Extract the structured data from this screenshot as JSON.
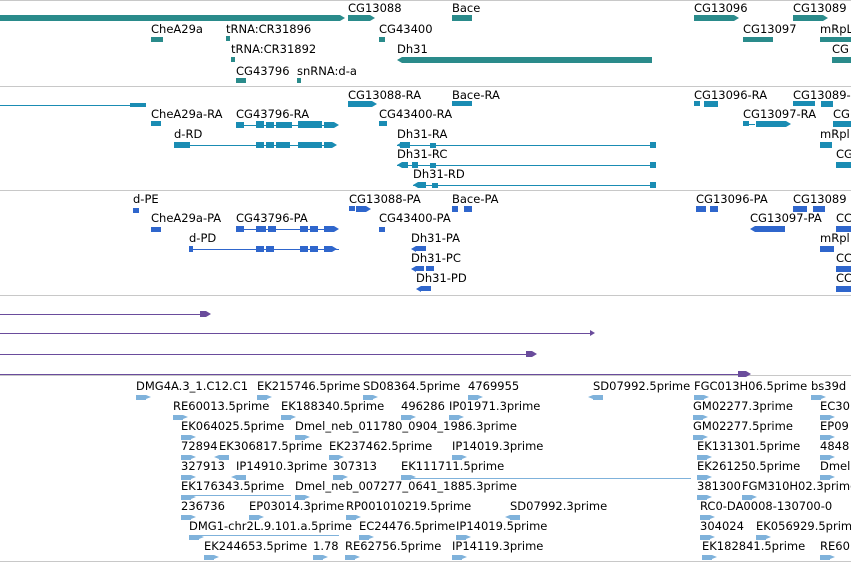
{
  "colors": {
    "gene": "#2a8b8b",
    "mrna": "#1a8cb3",
    "cds": "#2f66cc",
    "purple": "#6a4c9c",
    "est": "#7fb2db",
    "separator": "#c8c8c8"
  },
  "tracks": {
    "genes": {
      "labels": [
        "CG13088",
        "Bace",
        "CG13096",
        "CG13089",
        "CheA29a",
        "tRNA:CR31896",
        "CG43400",
        "CG13097",
        "mRpL",
        "tRNA:CR31892",
        "Dh31",
        "CG",
        "CG43796",
        "snRNA:d-a"
      ]
    },
    "transcripts": {
      "labels": [
        "CG13088-RA",
        "Bace-RA",
        "CG13096-RA",
        "CG13089-",
        "CheA29a-RA",
        "CG43796-RA",
        "CG43400-RA",
        "CG13097-RA",
        "CG",
        "d-RD",
        "Dh31-RA",
        "mRpl",
        "Dh31-RC",
        "CG",
        "Dh31-RD"
      ]
    },
    "proteins": {
      "labels": [
        "d-PE",
        "CG13088-PA",
        "Bace-PA",
        "CG13096-PA",
        "CG13089",
        "CheA29a-PA",
        "CG43796-PA",
        "CG43400-PA",
        "CG13097-PA",
        "CC",
        "d-PD",
        "Dh31-PA",
        "mRpl",
        "Dh31-PC",
        "CC",
        "Dh31-PD",
        "CC"
      ]
    },
    "ests": {
      "labels": [
        "DMG4A.3_1.C12.C1",
        "EK215746.5prime",
        "SD08364.5prime",
        "4769955",
        "SD07992.5prime",
        "FGC013H06.5prime",
        "bs39d",
        "RE60013.5prime",
        "EK188340.5prime",
        "496286",
        "IP01971.3prime",
        "GM02277.3prime",
        "EC30",
        "EK064025.5prime",
        "Dmel_neb_011780_0904_1986.3prime",
        "GM02277.5prime",
        "EP09",
        "72894",
        "EK306817.5prime",
        "EK237462.5prime",
        "IP14019.3prime",
        "EK131301.5prime",
        "4848",
        "327913",
        "IP14910.3prime",
        "307313",
        "EK111711.5prime",
        "EK261250.5prime",
        "Dmel",
        "EK176343.5prime",
        "Dmel_neb_007277_0641_1885.3prime",
        "381300",
        "FGM310H02.3prime",
        "236736",
        "EP03014.3prime",
        "RP001010219.5prime",
        "SD07992.3prime",
        "RC0-DA0008-130700-0",
        "DMG1-chr2L.9.101.a.5prime",
        "EC24476.5prime",
        "IP14019.5prime",
        "304024",
        "EK056929.5prime",
        "EK244653.5prime",
        "1.78",
        "RE62756.5prime",
        "IP14119.3prime",
        "EK182841.5prime",
        "RE60"
      ]
    }
  }
}
